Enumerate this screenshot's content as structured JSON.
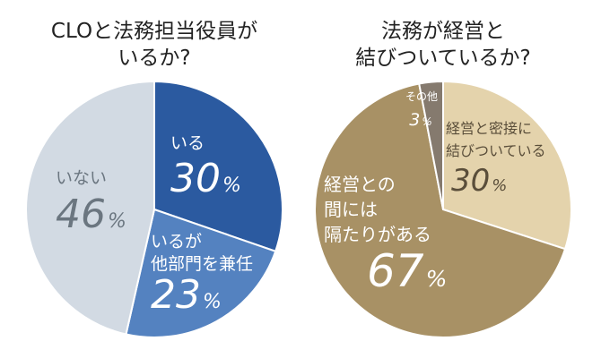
{
  "chart_data": [
    {
      "type": "pie",
      "title_lines": [
        "CLOと法務担当役員が",
        "いるか?"
      ],
      "slices": [
        {
          "label_lines": [
            "いる"
          ],
          "value": 30,
          "value_label": "30",
          "unit": "%",
          "color": "#2b5aa0",
          "text_color": "#ffffff"
        },
        {
          "label_lines": [
            "いるが",
            "他部門を兼任"
          ],
          "value": 23,
          "value_label": "23",
          "unit": "%",
          "color": "#5482c0",
          "text_color": "#ffffff"
        },
        {
          "label_lines": [
            "いない"
          ],
          "value": 46,
          "value_label": "46",
          "unit": "%",
          "color": "#d2dae3",
          "text_color": "#6b7680"
        }
      ]
    },
    {
      "type": "pie",
      "title_lines": [
        "法務が経営と",
        "結びついているか?"
      ],
      "slices": [
        {
          "label_lines": [
            "経営と密接に",
            "結びついている"
          ],
          "value": 30,
          "value_label": "30",
          "unit": "%",
          "color": "#e4d3ac",
          "text_color": "#5a4e3a"
        },
        {
          "label_lines": [
            "経営との",
            "間には",
            "隔たりがある"
          ],
          "value": 67,
          "value_label": "67",
          "unit": "%",
          "color": "#a89165",
          "text_color": "#ffffff"
        },
        {
          "label_lines": [
            "その他"
          ],
          "value": 3,
          "value_label": "3",
          "unit": "%",
          "color": "#857a6e",
          "text_color": "#ffffff"
        }
      ]
    }
  ]
}
